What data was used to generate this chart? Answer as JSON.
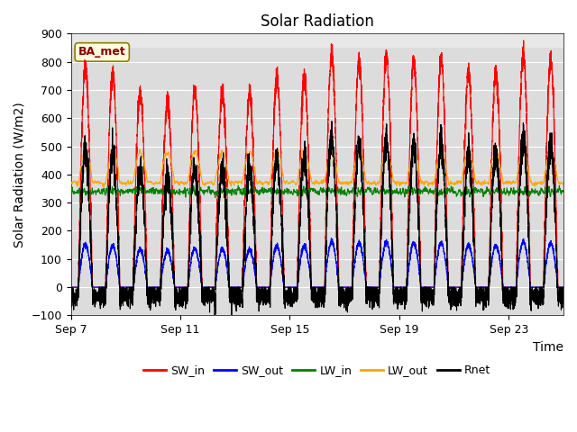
{
  "title": "Solar Radiation",
  "xlabel": "Time",
  "ylabel": "Solar Radiation (W/m2)",
  "annotation": "BA_met",
  "ylim": [
    -100,
    900
  ],
  "yticks": [
    -100,
    0,
    100,
    200,
    300,
    400,
    500,
    600,
    700,
    800,
    900
  ],
  "xtick_labels": [
    "Sep 7",
    "Sep 11",
    "Sep 15",
    "Sep 19",
    "Sep 23"
  ],
  "xtick_positions": [
    0,
    4,
    8,
    12,
    16
  ],
  "n_days": 18,
  "points_per_day": 288,
  "sw_in_color": "red",
  "sw_out_color": "blue",
  "lw_in_color": "green",
  "lw_out_color": "orange",
  "rnet_color": "black",
  "plot_bg_color": "#dcdcdc",
  "upper_bg_color": "#e8e8e8",
  "title_fontsize": 12,
  "label_fontsize": 10,
  "tick_fontsize": 9,
  "legend_fontsize": 9,
  "line_width": 0.8,
  "figwidth": 6.4,
  "figheight": 4.8,
  "dpi": 100
}
